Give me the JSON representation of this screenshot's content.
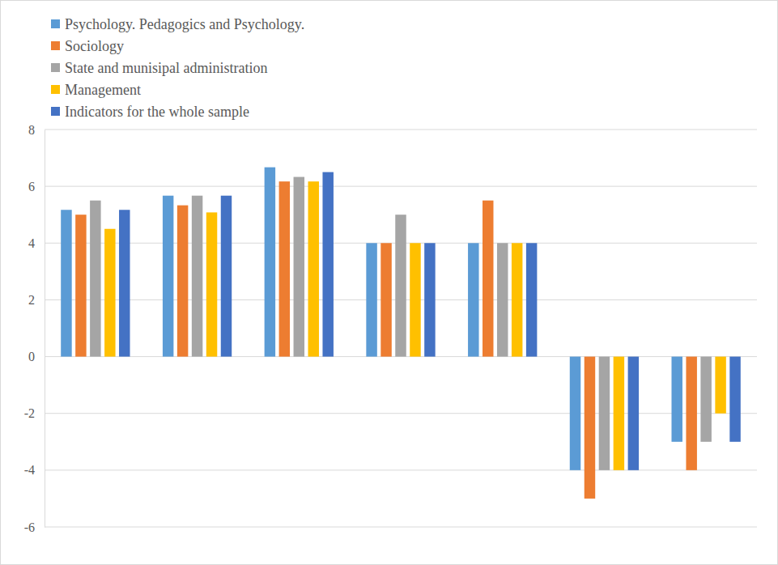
{
  "chart_data": {
    "type": "bar",
    "categories": [
      null,
      null,
      null,
      null,
      null,
      null,
      null
    ],
    "series": [
      {
        "name": "Psychology. Pedagogics and Psychology.",
        "color": "#5b9bd5",
        "values": [
          5.17,
          5.67,
          6.67,
          4,
          4,
          -4,
          -3
        ]
      },
      {
        "name": "Sociology",
        "color": "#ed7d31",
        "values": [
          5.0,
          5.33,
          6.17,
          4,
          5.5,
          -5,
          -4
        ]
      },
      {
        "name": "State and munisipal administration",
        "color": "#a5a5a5",
        "values": [
          5.5,
          5.67,
          6.33,
          5,
          4,
          -4,
          -3
        ]
      },
      {
        "name": "Management",
        "color": "#ffc000",
        "values": [
          4.5,
          5.08,
          6.17,
          4,
          4,
          -4,
          -2
        ]
      },
      {
        "name": "Indicators for the whole sample",
        "color": "#4472c4",
        "values": [
          5.17,
          5.67,
          6.5,
          4,
          4,
          -4,
          -3
        ]
      }
    ],
    "ylim": [
      -6,
      8
    ],
    "yticks": [
      -6,
      -4,
      -2,
      0,
      2,
      4,
      6,
      8
    ],
    "grid": true,
    "legend": "top",
    "tick_labels": "y"
  }
}
